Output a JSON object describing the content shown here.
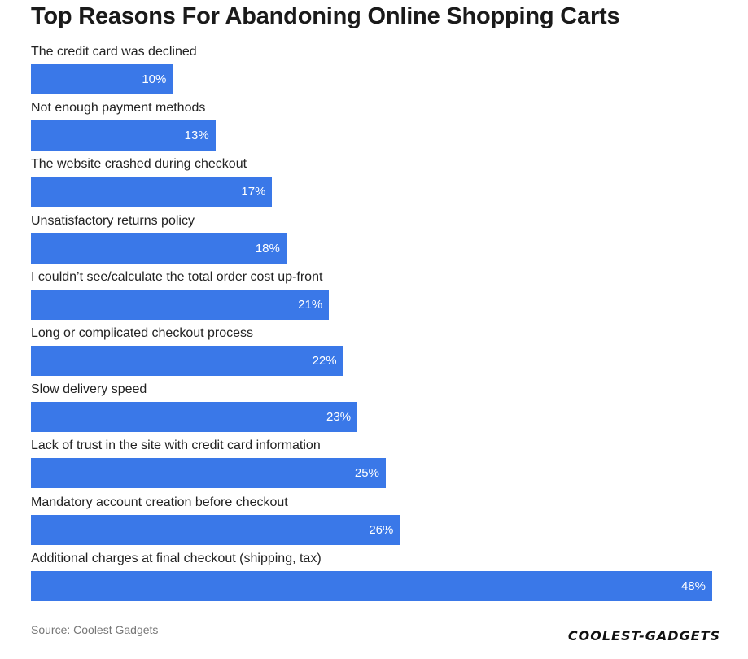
{
  "chart_data": {
    "type": "bar",
    "orientation": "horizontal",
    "title": "Top Reasons For Abandoning Online Shopping Carts",
    "categories": [
      "The credit card was declined",
      "Not enough payment methods",
      "The website crashed during checkout",
      "Unsatisfactory returns policy",
      "I couldn’t see/calculate the total order cost up-front",
      "Long or complicated checkout process",
      "Slow delivery speed",
      "Lack of trust in the site with credit card information",
      "Mandatory account creation before checkout",
      "Additional charges at final checkout (shipping, tax)"
    ],
    "values": [
      10,
      13,
      17,
      18,
      21,
      22,
      23,
      25,
      26,
      48
    ],
    "value_labels": [
      "10%",
      "13%",
      "17%",
      "18%",
      "21%",
      "22%",
      "23%",
      "25%",
      "26%",
      "48%"
    ],
    "unit": "%",
    "xlim": [
      0,
      48
    ],
    "grid": false,
    "legend": "none",
    "bar_color": "#3a78e8"
  },
  "source": "Source: Coolest Gadgets",
  "logo": "COOLEST-GADGETS"
}
